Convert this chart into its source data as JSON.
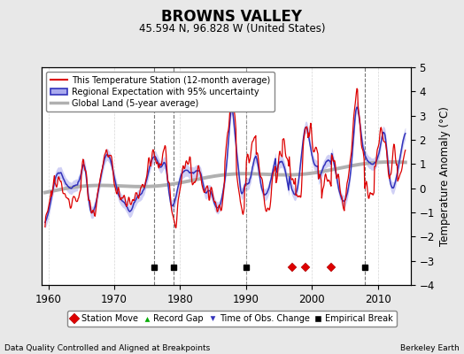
{
  "title": "BROWNS VALLEY",
  "subtitle": "45.594 N, 96.828 W (United States)",
  "ylabel": "Temperature Anomaly (°C)",
  "xlabel_left": "Data Quality Controlled and Aligned at Breakpoints",
  "xlabel_right": "Berkeley Earth",
  "ylim": [
    -4,
    5
  ],
  "xlim": [
    1959,
    2015
  ],
  "yticks": [
    -4,
    -3,
    -2,
    -1,
    0,
    1,
    2,
    3,
    4,
    5
  ],
  "xticks": [
    1960,
    1970,
    1980,
    1990,
    2000,
    2010
  ],
  "bg_color": "#e8e8e8",
  "plot_bg_color": "#ffffff",
  "station_move_years": [
    1997,
    1999,
    2003
  ],
  "empirical_break_years": [
    1976,
    1979,
    1990,
    2008
  ],
  "legend_items": [
    {
      "label": "This Temperature Station (12-month average)",
      "color": "#dd0000"
    },
    {
      "label": "Regional Expectation with 95% uncertainty",
      "color": "#4444cc"
    },
    {
      "label": "Global Land (5-year average)",
      "color": "#aaaaaa"
    }
  ]
}
